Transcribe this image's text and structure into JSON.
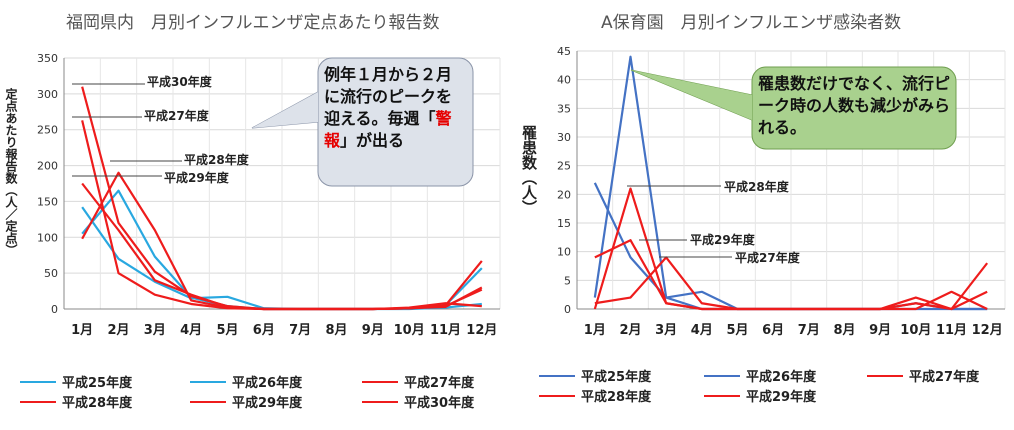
{
  "chart_data": [
    {
      "type": "line",
      "title": "福岡県内　月別インフルエンザ定点あたり報告数",
      "ylabel": "定点あたり報告数（人／定点）",
      "ylim": [
        0,
        350
      ],
      "yticks": [
        0,
        50,
        100,
        150,
        200,
        250,
        300,
        350
      ],
      "categories": [
        "1月",
        "2月",
        "3月",
        "4月",
        "5月",
        "6月",
        "7月",
        "8月",
        "9月",
        "10月",
        "11月",
        "12月"
      ],
      "series": [
        {
          "name": "平成25年度",
          "color": "#29A8E0",
          "values": [
            142,
            70,
            38,
            15,
            17,
            1,
            0,
            0,
            0,
            0,
            2,
            7
          ]
        },
        {
          "name": "平成26年度",
          "color": "#29A8E0",
          "values": [
            105,
            165,
            73,
            16,
            4,
            0,
            0,
            0,
            0,
            1,
            5,
            57
          ]
        },
        {
          "name": "平成27年度",
          "color": "#EE1C1C",
          "values": [
            263,
            50,
            20,
            7,
            1,
            0,
            0,
            0,
            0,
            1,
            3,
            30
          ]
        },
        {
          "name": "平成28年度",
          "color": "#EE1C1C",
          "values": [
            175,
            110,
            40,
            20,
            3,
            0,
            0,
            0,
            0,
            1,
            5,
            67
          ]
        },
        {
          "name": "平成29年度",
          "color": "#EE1C1C",
          "values": [
            98,
            190,
            110,
            12,
            2,
            0,
            0,
            0,
            0,
            1,
            4,
            27
          ]
        },
        {
          "name": "平成30年度",
          "color": "#EE1C1C",
          "values": [
            310,
            120,
            52,
            18,
            4,
            0,
            0,
            0,
            0,
            2,
            8,
            4
          ]
        }
      ],
      "annotations": [
        "平成30年度",
        "平成27年度",
        "平成28年度",
        "平成29年度"
      ],
      "callout": {
        "before": "例年１月から２月に流行のピークを迎える。毎週「",
        "highlight": "警報",
        "after": "」が出る"
      }
    },
    {
      "type": "line",
      "title": "A保育園　月別インフルエンザ感染者数",
      "ylabel": "罹患数（人）",
      "ylim": [
        0,
        45
      ],
      "yticks": [
        0,
        5,
        10,
        15,
        20,
        25,
        30,
        35,
        40,
        45
      ],
      "categories": [
        "1月",
        "2月",
        "3月",
        "4月",
        "5月",
        "6月",
        "7月",
        "8月",
        "9月",
        "10月",
        "11月",
        "12月"
      ],
      "series": [
        {
          "name": "平成25年度",
          "color": "#4472C4",
          "values": [
            22,
            9,
            2,
            3,
            0,
            0,
            0,
            0,
            0,
            1,
            0,
            0
          ]
        },
        {
          "name": "平成26年度",
          "color": "#4472C4",
          "values": [
            2,
            44,
            2,
            0,
            0,
            0,
            0,
            0,
            0,
            0,
            0,
            0
          ]
        },
        {
          "name": "平成27年度",
          "color": "#EE1C1C",
          "values": [
            1,
            2,
            9,
            1,
            0,
            0,
            0,
            0,
            0,
            2,
            0,
            8
          ]
        },
        {
          "name": "平成28年度",
          "color": "#EE1C1C",
          "values": [
            0,
            21,
            1,
            0,
            0,
            0,
            0,
            0,
            0,
            0,
            3,
            0
          ]
        },
        {
          "name": "平成29年度",
          "color": "#EE1C1C",
          "values": [
            9,
            12,
            1,
            0,
            0,
            0,
            0,
            0,
            0,
            1,
            0,
            3
          ]
        }
      ],
      "annotations": [
        "平成28年度",
        "平成29年度",
        "平成27年度"
      ],
      "callout": {
        "text": "罹患数だけでなく、流行ピーク時の人数も減少がみられる。"
      }
    }
  ]
}
